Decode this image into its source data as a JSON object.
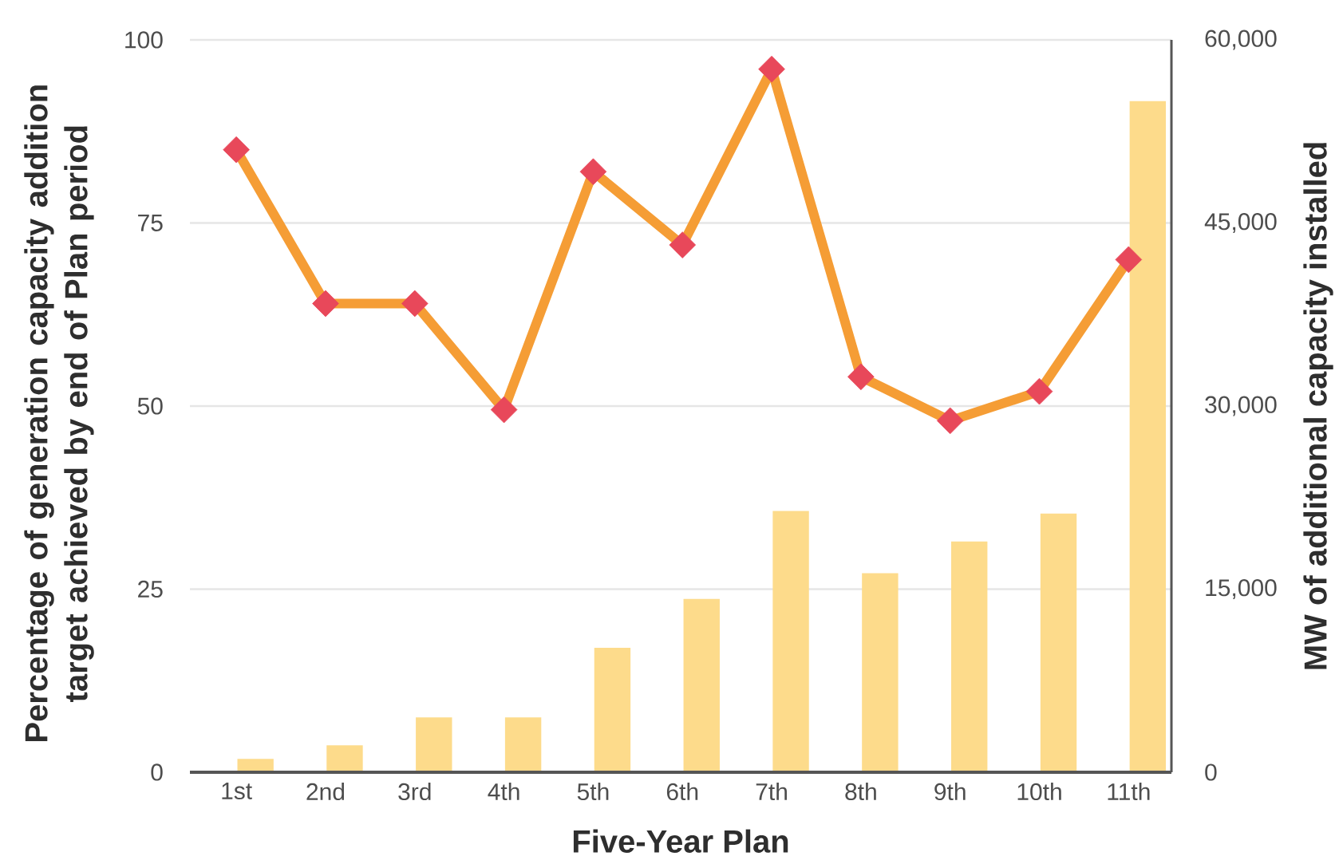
{
  "chart_data": {
    "type": "bar",
    "xlabel": "Five-Year Plan",
    "ylabel": "Percentage of generation capacity addition target achieved by end of Plan period",
    "y2label": "MW of additional capacity installed",
    "categories": [
      "1st",
      "2nd",
      "3rd",
      "4th",
      "5th",
      "6th",
      "7th",
      "8th",
      "9th",
      "10th",
      "11th"
    ],
    "series": [
      {
        "axis": "y2",
        "color": "#fddb8b",
        "values": [
          1100,
          2200,
          4500,
          4500,
          10200,
          14200,
          21400,
          16300,
          18900,
          21200,
          55000
        ]
      },
      {
        "type": "line",
        "axis": "y",
        "color": "#f59d35",
        "values": [
          85,
          64,
          64,
          49.5,
          82,
          72,
          96,
          54,
          48,
          52,
          70
        ]
      }
    ],
    "ylim": [
      0,
      100
    ],
    "yticks": [
      0,
      25,
      50,
      75,
      100
    ],
    "y2lim": [
      0,
      60000
    ],
    "y2ticks": [
      0,
      {
        "value": 15000,
        "label": "15,000"
      },
      {
        "value": 30000,
        "label": "30,000"
      },
      {
        "value": 45000,
        "label": "45,000"
      },
      {
        "value": 60000,
        "label": "60,000"
      }
    ],
    "grid": "y",
    "marker": "diamond",
    "line_style": "solid"
  }
}
